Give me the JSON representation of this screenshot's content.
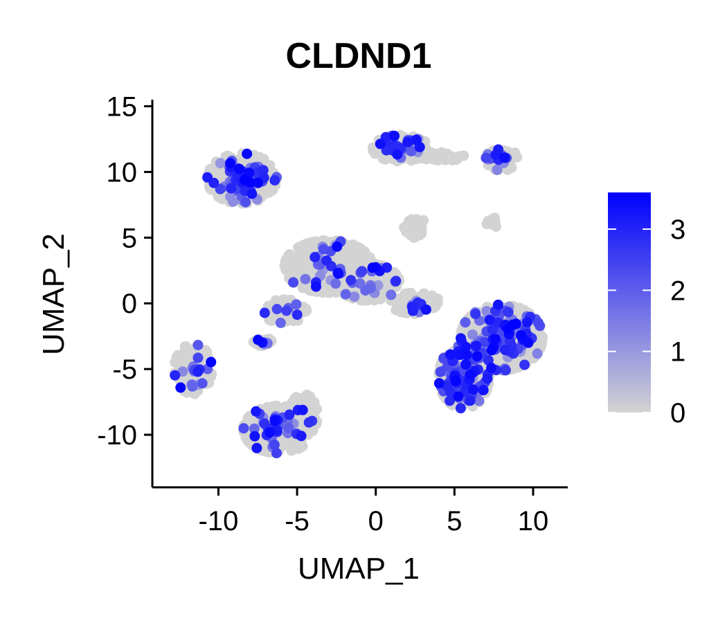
{
  "chart_data": {
    "type": "scatter",
    "title": "CLDND1",
    "xlabel": "UMAP_1",
    "ylabel": "UMAP_2",
    "xlim": [
      -14.2,
      12.2
    ],
    "ylim": [
      -14,
      15.5
    ],
    "x_ticks": [
      -10,
      -5,
      0,
      5,
      10
    ],
    "x_tick_labels": [
      "-10",
      "-5",
      "0",
      "5",
      "10"
    ],
    "y_ticks": [
      15,
      10,
      5,
      0,
      -5,
      -10
    ],
    "y_tick_labels": [
      "15",
      "10",
      "5",
      "0",
      "-5",
      "-10"
    ],
    "grid": false,
    "legend": {
      "type": "colorbar",
      "placement": "right",
      "range": [
        0,
        3.6
      ],
      "ticks": [
        0,
        1,
        2,
        3
      ],
      "tick_labels": [
        "0",
        "1",
        "2",
        "3"
      ],
      "low_color": "#d3d3d3",
      "high_color": "#0000ff"
    },
    "clusters": [
      {
        "cx": -8.5,
        "cy": 9.5,
        "rx": 2.2,
        "ry": 1.9,
        "n": 420,
        "hi_frac": 0.12
      },
      {
        "cx": 1.6,
        "cy": 11.8,
        "rx": 1.8,
        "ry": 1.0,
        "n": 230,
        "hi_frac": 0.06
      },
      {
        "cx": 4.2,
        "cy": 11.2,
        "rx": 1.4,
        "ry": 0.35,
        "n": 60,
        "hi_frac": 0.0
      },
      {
        "cx": 8.0,
        "cy": 11.0,
        "rx": 1.0,
        "ry": 0.9,
        "n": 90,
        "hi_frac": 0.15
      },
      {
        "cx": 2.5,
        "cy": 5.8,
        "rx": 0.7,
        "ry": 0.8,
        "n": 70,
        "hi_frac": 0.0
      },
      {
        "cx": 7.3,
        "cy": 6.2,
        "rx": 0.5,
        "ry": 0.5,
        "n": 14,
        "hi_frac": 0.0
      },
      {
        "cx": -3.0,
        "cy": 2.8,
        "rx": 2.8,
        "ry": 2.0,
        "n": 650,
        "hi_frac": 0.05
      },
      {
        "cx": -0.5,
        "cy": 1.6,
        "rx": 2.0,
        "ry": 1.4,
        "n": 360,
        "hi_frac": 0.05
      },
      {
        "cx": -5.8,
        "cy": -0.6,
        "rx": 1.4,
        "ry": 0.9,
        "n": 120,
        "hi_frac": 0.02
      },
      {
        "cx": 2.5,
        "cy": 0.0,
        "rx": 1.6,
        "ry": 0.8,
        "n": 130,
        "hi_frac": 0.06
      },
      {
        "cx": -7.2,
        "cy": -3.0,
        "rx": 0.6,
        "ry": 0.5,
        "n": 26,
        "hi_frac": 0.2
      },
      {
        "cx": 8.0,
        "cy": -2.6,
        "rx": 2.6,
        "ry": 2.5,
        "n": 520,
        "hi_frac": 0.24
      },
      {
        "cx": 5.6,
        "cy": -5.6,
        "rx": 1.6,
        "ry": 2.4,
        "n": 380,
        "hi_frac": 0.24
      },
      {
        "cx": -11.6,
        "cy": -5.0,
        "rx": 1.2,
        "ry": 1.9,
        "n": 200,
        "hi_frac": 0.1
      },
      {
        "cx": -6.2,
        "cy": -9.6,
        "rx": 2.2,
        "ry": 1.8,
        "n": 360,
        "hi_frac": 0.08
      },
      {
        "cx": -4.6,
        "cy": -8.5,
        "rx": 0.9,
        "ry": 1.6,
        "n": 110,
        "hi_frac": 0.05
      }
    ]
  }
}
